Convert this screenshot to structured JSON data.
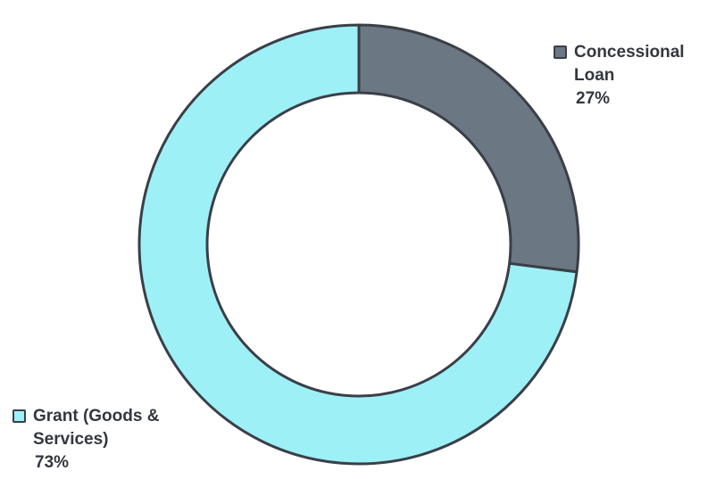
{
  "chart_data": {
    "type": "pie",
    "style": "donut",
    "title": "",
    "categories": [
      "Concessional Loan",
      "Grant (Goods & Services)"
    ],
    "values": [
      27,
      73
    ],
    "percent_labels": [
      "27%",
      "73%"
    ],
    "label_lines": [
      [
        "Concessional",
        "Loan"
      ],
      [
        "Grant (Goods &",
        "Services)"
      ]
    ],
    "colors": [
      "#6b7782",
      "#9ef0f7"
    ],
    "outline_color": "#3a3f47",
    "start_angle_deg": 0,
    "direction": "clockwise"
  }
}
